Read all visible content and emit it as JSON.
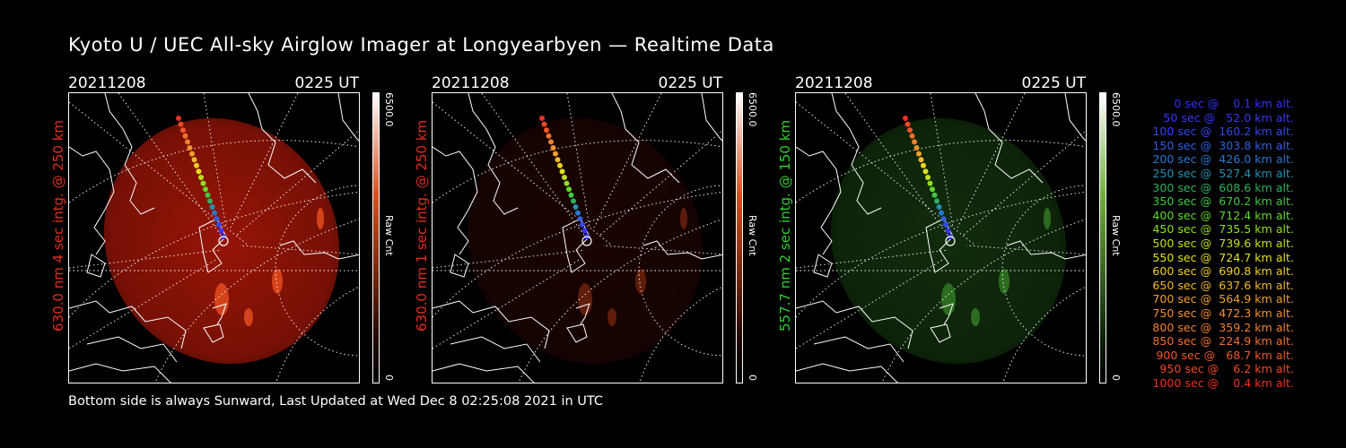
{
  "title": "Kyoto U / UEC All-sky Airglow Imager at Longyearbyen — Realtime Data",
  "footer": "Bottom side is always Sunward, Last Updated at Wed Dec  8 02:25:08 2021 in UTC",
  "panels": [
    {
      "date": "20211208",
      "time": "0225 UT",
      "label": "630.0 nm 4 sec intg. @ 250 km",
      "label_color": "#e03020",
      "colorbar_max": "6500.0",
      "colorbar_unit": "Raw Cnt",
      "colorbar_min": "0",
      "image_tint": "#b01808",
      "image_intensity": 0.85
    },
    {
      "date": "20211208",
      "time": "0225 UT",
      "label": "630.0 nm 1 sec intg. @ 250 km",
      "label_color": "#e03020",
      "colorbar_max": "6500.0",
      "colorbar_unit": "Raw Cnt",
      "colorbar_min": "0",
      "image_tint": "#3a0804",
      "image_intensity": 0.45
    },
    {
      "date": "20211208",
      "time": "0225 UT",
      "label": "557.7 nm 2 sec intg. @ 150 km",
      "label_color": "#30d030",
      "colorbar_max": "6500.0",
      "colorbar_unit": "Raw Cnt",
      "colorbar_min": "0",
      "image_tint": "#1c4a14",
      "image_intensity": 0.6
    }
  ],
  "legend": [
    {
      "text": "   0 sec @    0.1 km alt.",
      "color": "#3030ff"
    },
    {
      "text": "  50 sec @   52.0 km alt.",
      "color": "#3838ff"
    },
    {
      "text": " 100 sec @  160.2 km alt.",
      "color": "#3048f0"
    },
    {
      "text": " 150 sec @  303.8 km alt.",
      "color": "#3060e0"
    },
    {
      "text": " 200 sec @  426.0 km alt.",
      "color": "#2878d0"
    },
    {
      "text": " 250 sec @  527.4 km alt.",
      "color": "#2890b0"
    },
    {
      "text": " 300 sec @  608.6 km alt.",
      "color": "#30b060"
    },
    {
      "text": " 350 sec @  670.2 km alt.",
      "color": "#40c840"
    },
    {
      "text": " 400 sec @  712.4 km alt.",
      "color": "#60d830"
    },
    {
      "text": " 450 sec @  735.5 km alt.",
      "color": "#90e020"
    },
    {
      "text": " 500 sec @  739.6 km alt.",
      "color": "#c0e020"
    },
    {
      "text": " 550 sec @  724.7 km alt.",
      "color": "#e0e020"
    },
    {
      "text": " 600 sec @  690.8 km alt.",
      "color": "#f0d020"
    },
    {
      "text": " 650 sec @  637.6 km alt.",
      "color": "#f0b830"
    },
    {
      "text": " 700 sec @  564.9 km alt.",
      "color": "#f0a030"
    },
    {
      "text": " 750 sec @  472.3 km alt.",
      "color": "#f09030"
    },
    {
      "text": " 800 sec @  359.2 km alt.",
      "color": "#f08030"
    },
    {
      "text": " 850 sec @  224.9 km alt.",
      "color": "#f07030"
    },
    {
      "text": " 900 sec @   68.7 km alt.",
      "color": "#f05828"
    },
    {
      "text": " 950 sec @    6.2 km alt.",
      "color": "#f04828"
    },
    {
      "text": "1000 sec @    0.4 km alt.",
      "color": "#f03020"
    }
  ]
}
